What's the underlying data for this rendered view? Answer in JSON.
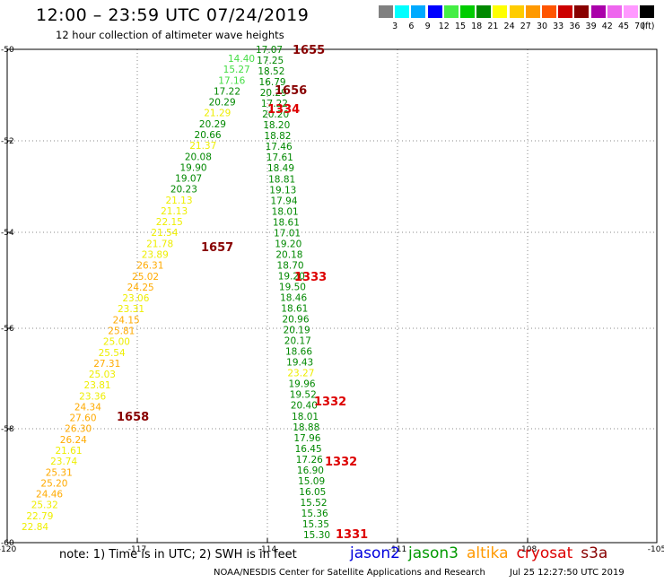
{
  "header": {
    "title": "12:00 – 23:59 UTC 07/24/2019",
    "subtitle": "12 hour collection of altimeter wave heights"
  },
  "legend": {
    "unit": "(ft)",
    "colors": [
      "#808080",
      "#00ffff",
      "#00aaff",
      "#0000ff",
      "#44ee44",
      "#00cc00",
      "#008800",
      "#ffff00",
      "#ffcc00",
      "#ff9900",
      "#ff5500",
      "#cc0000",
      "#880000",
      "#aa00aa",
      "#ee66ee",
      "#ff99ff",
      "#000000"
    ],
    "labels": [
      "3",
      "6",
      "9",
      "12",
      "15",
      "18",
      "21",
      "24",
      "27",
      "30",
      "33",
      "36",
      "39",
      "42",
      "45",
      "70"
    ]
  },
  "axes": {
    "x_ticks": [
      "-120",
      "-117",
      "-114",
      "-111",
      "-108",
      "-105"
    ],
    "y_ticks": [
      "-50",
      "-52",
      "-54",
      "-56",
      "-58",
      "-60"
    ]
  },
  "palette": {
    "lightgreen": "#44dd44",
    "green": "#008800",
    "yellow": "#eeee00",
    "orange": "#ffaa00",
    "darkred": "#880000",
    "red": "#dd0000"
  },
  "tracks": {
    "track_a": [
      [
        "22.84",
        "yellow"
      ],
      [
        "22.79",
        "yellow"
      ],
      [
        "25.32",
        "yellow"
      ],
      [
        "24.46",
        "orange"
      ],
      [
        "25.20",
        "orange"
      ],
      [
        "25.31",
        "orange"
      ],
      [
        "23.74",
        "yellow"
      ],
      [
        "21.61",
        "yellow"
      ],
      [
        "26.24",
        "orange"
      ],
      [
        "26.30",
        "orange"
      ],
      [
        "27.60",
        "orange"
      ],
      [
        "24.34",
        "orange"
      ],
      [
        "23.36",
        "yellow"
      ],
      [
        "23.81",
        "yellow"
      ],
      [
        "25.03",
        "yellow"
      ],
      [
        "27.31",
        "orange"
      ],
      [
        "25.54",
        "yellow"
      ],
      [
        "25.00",
        "yellow"
      ],
      [
        "25.81",
        "orange"
      ],
      [
        "24.15",
        "orange"
      ],
      [
        "23.31",
        "yellow"
      ],
      [
        "23.06",
        "yellow"
      ],
      [
        "24.25",
        "orange"
      ],
      [
        "25.02",
        "orange"
      ],
      [
        "26.31",
        "orange"
      ],
      [
        "23.89",
        "yellow"
      ],
      [
        "21.78",
        "yellow"
      ],
      [
        "21.54",
        "yellow"
      ],
      [
        "22.15",
        "yellow"
      ],
      [
        "21.13",
        "yellow"
      ],
      [
        "21.13",
        "yellow"
      ],
      [
        "20.23",
        "green"
      ],
      [
        "19.07",
        "green"
      ],
      [
        "19.90",
        "green"
      ],
      [
        "20.08",
        "green"
      ],
      [
        "21.37",
        "yellow"
      ],
      [
        "20.66",
        "green"
      ],
      [
        "20.29",
        "green"
      ],
      [
        "21.29",
        "yellow"
      ],
      [
        "20.29",
        "green"
      ],
      [
        "17.22",
        "green"
      ],
      [
        "17.16",
        "lightgreen"
      ],
      [
        "15.27",
        "lightgreen"
      ],
      [
        "14.40",
        "lightgreen"
      ]
    ],
    "track_b": [
      [
        "15.30",
        "green"
      ],
      [
        "15.35",
        "green"
      ],
      [
        "15.36",
        "green"
      ],
      [
        "15.52",
        "green"
      ],
      [
        "16.05",
        "green"
      ],
      [
        "15.09",
        "green"
      ],
      [
        "16.90",
        "green"
      ],
      [
        "17.26",
        "green"
      ],
      [
        "16.45",
        "green"
      ],
      [
        "17.96",
        "green"
      ],
      [
        "18.88",
        "green"
      ],
      [
        "18.01",
        "green"
      ],
      [
        "20.40",
        "green"
      ],
      [
        "19.52",
        "green"
      ],
      [
        "19.96",
        "green"
      ],
      [
        "23.27",
        "yellow"
      ],
      [
        "19.43",
        "green"
      ],
      [
        "18.66",
        "green"
      ],
      [
        "20.17",
        "green"
      ],
      [
        "20.19",
        "green"
      ],
      [
        "20.96",
        "green"
      ],
      [
        "18.61",
        "green"
      ],
      [
        "18.46",
        "green"
      ],
      [
        "19.50",
        "green"
      ],
      [
        "19.20",
        "green"
      ],
      [
        "18.70",
        "green"
      ],
      [
        "20.18",
        "green"
      ],
      [
        "19.20",
        "green"
      ],
      [
        "17.01",
        "green"
      ],
      [
        "18.61",
        "green"
      ],
      [
        "18.01",
        "green"
      ],
      [
        "17.94",
        "green"
      ],
      [
        "19.13",
        "green"
      ],
      [
        "18.81",
        "green"
      ],
      [
        "18.49",
        "green"
      ],
      [
        "17.61",
        "green"
      ],
      [
        "17.46",
        "green"
      ],
      [
        "18.82",
        "green"
      ],
      [
        "18.20",
        "green"
      ],
      [
        "20.20",
        "green"
      ],
      [
        "17.22",
        "green"
      ],
      [
        "20.29",
        "green"
      ],
      [
        "16.79",
        "green"
      ],
      [
        "18.52",
        "green"
      ],
      [
        "17.25",
        "green"
      ],
      [
        "17.07",
        "green"
      ]
    ],
    "times": [
      {
        "text": "1655",
        "color": "darkred"
      },
      {
        "text": "1656",
        "color": "darkred"
      },
      {
        "text": "1334",
        "color": "red"
      },
      {
        "text": "1657",
        "color": "darkred"
      },
      {
        "text": "1333",
        "color": "red"
      },
      {
        "text": "1332",
        "color": "red"
      },
      {
        "text": "1658",
        "color": "darkred"
      },
      {
        "text": "1332",
        "color": "red"
      },
      {
        "text": "1331",
        "color": "red"
      }
    ]
  },
  "note": "note:  1) Time is in UTC;  2) SWH is in feet",
  "missions": [
    {
      "name": "jason2",
      "color": "#0000dd"
    },
    {
      "name": "jason3",
      "color": "#009900"
    },
    {
      "name": "altika",
      "color": "#ff9900"
    },
    {
      "name": "cryosat",
      "color": "#dd0000"
    },
    {
      "name": "s3a",
      "color": "#880000"
    }
  ],
  "footer": {
    "credit": "NOAA/NESDIS Center for Satellite Applications and Research",
    "timestamp": "Jul 25 12:27:50 UTC 2019"
  }
}
